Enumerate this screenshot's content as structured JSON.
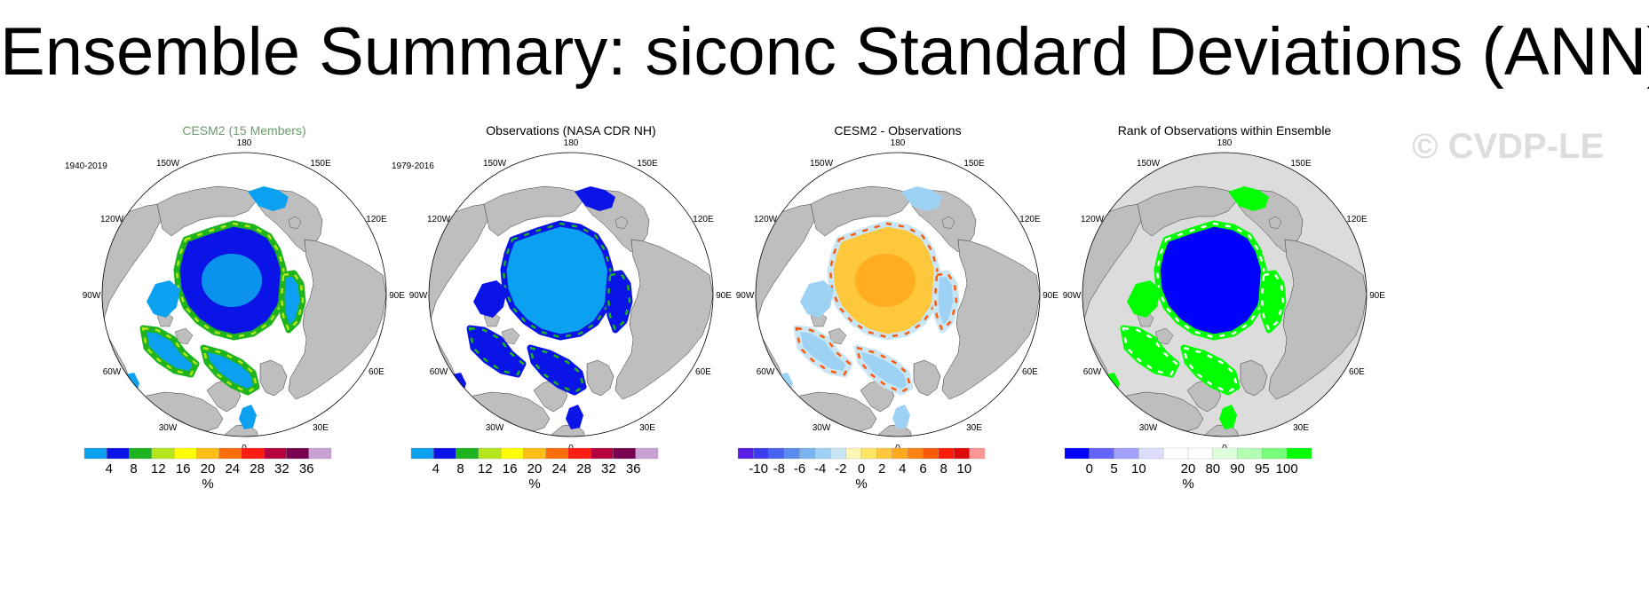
{
  "title": "Ensemble Summary: siconc Standard Deviations (ANN)",
  "watermark": "© CVDP-LE",
  "colors": {
    "land": "#bebebe",
    "ocean": "#ffffff",
    "no_data_land_rank": "#dcdcdc"
  },
  "panels": [
    {
      "title": "CESM2 (15 Members)",
      "title_color": "#6b9b6b",
      "period": "1940-2019",
      "field": "siconc-stddev-model",
      "colorbar": {
        "colors": [
          "#0ba0f0",
          "#0a14e6",
          "#1eb41e",
          "#b4e61e",
          "#ffff00",
          "#ffbe14",
          "#ff6e0a",
          "#ff1e14",
          "#b4003c",
          "#780050",
          "#c8a0d2"
        ],
        "labels": [
          "4",
          "8",
          "12",
          "16",
          "20",
          "24",
          "28",
          "32",
          "36"
        ],
        "unit": "%"
      }
    },
    {
      "title": "Observations (NASA CDR NH)",
      "title_color": "#000000",
      "period": "1979-2016",
      "field": "siconc-stddev-obs",
      "colorbar": {
        "colors": [
          "#0ba0f0",
          "#0a14e6",
          "#1eb41e",
          "#b4e61e",
          "#ffff00",
          "#ffbe14",
          "#ff6e0a",
          "#ff1e14",
          "#b4003c",
          "#780050",
          "#c8a0d2"
        ],
        "labels": [
          "4",
          "8",
          "12",
          "16",
          "20",
          "24",
          "28",
          "32",
          "36"
        ],
        "unit": "%"
      }
    },
    {
      "title": "CESM2 - Observations",
      "title_color": "#000000",
      "period": "",
      "field": "siconc-stddev-difference",
      "colorbar": {
        "colors": [
          "#5a1ee6",
          "#3c3cf0",
          "#4664f0",
          "#5a8cf0",
          "#78b4f0",
          "#9ed2f5",
          "#c8e6f5",
          "#fff5b4",
          "#ffe664",
          "#ffc83c",
          "#ffaa1e",
          "#ff8214",
          "#ff5a0a",
          "#ff1e0a",
          "#dc0a0a",
          "#ff9696"
        ],
        "labels": [
          "-10",
          "-8",
          "-6",
          "-4",
          "-2",
          "0",
          "2",
          "4",
          "6",
          "8",
          "10"
        ],
        "unit": "%"
      }
    },
    {
      "title": "Rank of Observations within Ensemble",
      "title_color": "#000000",
      "period": "",
      "field": "siconc-rank",
      "colorbar": {
        "colors": [
          "#0000ff",
          "#6464ff",
          "#a0a0ff",
          "#dcdcff",
          "#ffffff",
          "#ffffff",
          "#dcffdc",
          "#b4ffb4",
          "#78ff78",
          "#00ff00"
        ],
        "labels": [
          "0",
          "5",
          "10",
          "20",
          "80",
          "90",
          "95",
          "100"
        ],
        "unit": "%"
      }
    }
  ],
  "map": {
    "longitude_labels": [
      "180",
      "150E",
      "120E",
      "90E",
      "60E",
      "30E",
      "0",
      "30W",
      "60W",
      "90W",
      "120W",
      "150W"
    ]
  }
}
